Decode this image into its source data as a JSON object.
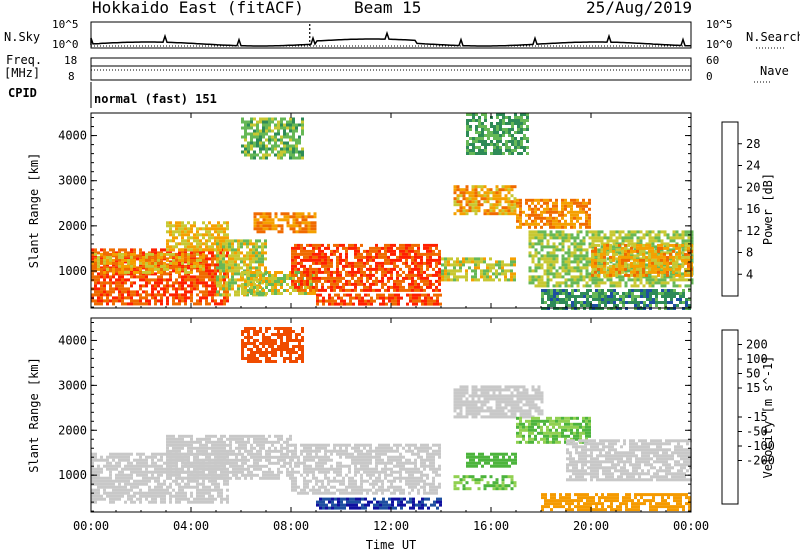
{
  "header": {
    "title": "Hokkaido East (fitACF)",
    "beam": "Beam 15",
    "date": "25/Aug/2019"
  },
  "side_labels": {
    "nsky": "N.Sky",
    "freq": "Freq.",
    "freq_unit": "[MHz]",
    "cpid": "CPID",
    "nsearch": "N.Search",
    "nave": "Nave"
  },
  "mini_axes": {
    "nsky_top": "10^5",
    "nsky_bottom": "10^0",
    "nsearch_top": "10^5",
    "nsearch_bottom": "10^0",
    "freq_top": "18",
    "freq_bottom": "8",
    "nave_top": "60",
    "nave_bottom": "0"
  },
  "cpid_text": "normal (fast) 151",
  "colors": {
    "power": [
      "#0000ff",
      "#1e4fa0",
      "#2e8b57",
      "#66b856",
      "#c8c832",
      "#f5a000",
      "#f06a00",
      "#ff2000"
    ],
    "velocity": [
      "#ff0000",
      "#f04c00",
      "#f59a00",
      "#f0c020",
      "#c8c8c8",
      "#aaaaaa",
      "#90d050",
      "#4cb43c",
      "#2e8b57",
      "#1e4fa0",
      "#1010a0"
    ]
  },
  "chart_data": [
    {
      "type": "heatmap",
      "title": "Power",
      "xlabel": "Time UT",
      "ylabel": "Slant Range [km]",
      "colorbar_label": "Power [dB]",
      "colorbar_ticks": [
        "4",
        "8",
        "12",
        "16",
        "20",
        "24",
        "28"
      ],
      "xticks": [
        "00:00",
        "04:00",
        "08:00",
        "12:00",
        "16:00",
        "20:00",
        "00:00"
      ],
      "yticks": [
        "1000",
        "2000",
        "3000",
        "4000"
      ],
      "xlim_hours": [
        0,
        24
      ],
      "ylim_km": [
        180,
        4500
      ],
      "regions": [
        {
          "t0": 0.0,
          "t1": 5.5,
          "r0": 300,
          "r1": 1500,
          "power": 28
        },
        {
          "t0": 0.0,
          "t1": 4.5,
          "r0": 1000,
          "r1": 1400,
          "power": 22
        },
        {
          "t0": 3.0,
          "t1": 5.5,
          "r0": 1500,
          "r1": 2100,
          "power": 20
        },
        {
          "t0": 5.0,
          "t1": 7.0,
          "r0": 500,
          "r1": 1700,
          "power": 18
        },
        {
          "t0": 6.0,
          "t1": 9.0,
          "r0": 500,
          "r1": 1000,
          "power": 18
        },
        {
          "t0": 6.5,
          "t1": 9.0,
          "r0": 1900,
          "r1": 2300,
          "power": 24
        },
        {
          "t0": 6.0,
          "t1": 8.5,
          "r0": 3500,
          "r1": 4400,
          "power": 14
        },
        {
          "t0": 8.0,
          "t1": 14.0,
          "r0": 600,
          "r1": 1600,
          "power": 28
        },
        {
          "t0": 9.0,
          "t1": 14.0,
          "r0": 300,
          "r1": 500,
          "power": 28
        },
        {
          "t0": 14.5,
          "t1": 17.0,
          "r0": 2300,
          "r1": 2900,
          "power": 22
        },
        {
          "t0": 14.0,
          "t1": 17.0,
          "r0": 800,
          "r1": 1300,
          "power": 18
        },
        {
          "t0": 17.0,
          "t1": 20.0,
          "r0": 2000,
          "r1": 2600,
          "power": 24
        },
        {
          "t0": 17.5,
          "t1": 24.0,
          "r0": 700,
          "r1": 1900,
          "power": 16
        },
        {
          "t0": 20.0,
          "t1": 24.0,
          "r0": 900,
          "r1": 1600,
          "power": 22
        },
        {
          "t0": 18.0,
          "t1": 24.0,
          "r0": 200,
          "r1": 600,
          "power": 10
        },
        {
          "t0": 15.0,
          "t1": 17.5,
          "r0": 3600,
          "r1": 4500,
          "power": 12
        }
      ]
    },
    {
      "type": "heatmap",
      "title": "Velocity",
      "xlabel": "Time UT",
      "ylabel": "Slant Range [km]",
      "colorbar_label": "Velocity [m s^-1]",
      "colorbar_ticks": [
        "200",
        "100",
        "50",
        "15",
        "-15",
        "-50",
        "-100",
        "-200"
      ],
      "xticks": [
        "00:00",
        "04:00",
        "08:00",
        "12:00",
        "16:00",
        "20:00",
        "00:00"
      ],
      "yticks": [
        "1000",
        "2000",
        "3000",
        "4000"
      ],
      "xlim_hours": [
        0,
        24
      ],
      "ylim_km": [
        180,
        4500
      ],
      "regions": [
        {
          "t0": 0.0,
          "t1": 5.5,
          "r0": 400,
          "r1": 1500,
          "velocity": 0
        },
        {
          "t0": 3.0,
          "t1": 8.0,
          "r0": 900,
          "r1": 1900,
          "velocity": 0
        },
        {
          "t0": 8.0,
          "t1": 14.0,
          "r0": 600,
          "r1": 1700,
          "velocity": 0
        },
        {
          "t0": 9.0,
          "t1": 14.0,
          "r0": 250,
          "r1": 500,
          "velocity": 150
        },
        {
          "t0": 6.0,
          "t1": 8.5,
          "r0": 3500,
          "r1": 4300,
          "velocity": -100
        },
        {
          "t0": 14.5,
          "t1": 18.0,
          "r0": 2300,
          "r1": 3000,
          "velocity": 0
        },
        {
          "t0": 15.0,
          "t1": 17.0,
          "r0": 1200,
          "r1": 1500,
          "velocity": 60
        },
        {
          "t0": 14.5,
          "t1": 17.0,
          "r0": 700,
          "r1": 1000,
          "velocity": 30
        },
        {
          "t0": 17.0,
          "t1": 20.0,
          "r0": 1700,
          "r1": 2300,
          "velocity": 30
        },
        {
          "t0": 18.0,
          "t1": 24.0,
          "r0": 200,
          "r1": 600,
          "velocity": -60
        },
        {
          "t0": 19.0,
          "t1": 24.0,
          "r0": 900,
          "r1": 1800,
          "velocity": 0
        }
      ]
    }
  ]
}
